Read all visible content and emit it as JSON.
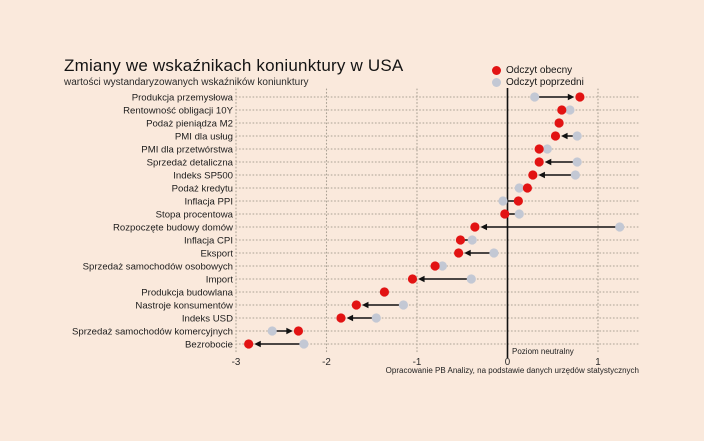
{
  "source": "Opracowanie PB Analizy, na podstawie danych urzędów statystycznych",
  "colors": {
    "background": "#fae9dc",
    "current": "#e21313",
    "previous": "#c3c8d4",
    "arrow": "#111111",
    "grid": "#aba295",
    "text": "#1c1c1c",
    "tick_text": "#2a2a2a"
  },
  "chart_data": {
    "type": "dumbbell-dot",
    "title": "Zmiany we wskaźnikach koniunktury w USA",
    "subtitle": "wartości wystandaryzowanych wskaźników koniunktury",
    "neutral_label": "Poziom neutralny",
    "xlabel": "",
    "ylabel": "",
    "x_ticks": [
      -3,
      -2,
      -1,
      0,
      1
    ],
    "xlim": [
      -3.1,
      1.45
    ],
    "neutral_line": 0,
    "grid": "dotted",
    "legend_position": "top-right",
    "series": [
      {
        "name": "Odczyt obecny",
        "color": "#e21313"
      },
      {
        "name": "Odczyt poprzedni",
        "color": "#c3c8d4"
      }
    ],
    "categories": [
      "Produkcja przemysłowa",
      "Rentowność obligacji 10Y",
      "Podaż pieniądza M2",
      "PMI dla usług",
      "PMI dla przetwórstwa",
      "Sprzedaż detaliczna",
      "Indeks SP500",
      "Podaż kredytu",
      "Inflacja PPI",
      "Stopa procentowa",
      "Rozpoczęte budowy domów",
      "Inflacja CPI",
      "Eksport",
      "Sprzedaż samochodów osobowych",
      "Import",
      "Produkcja budowlana",
      "Nastroje konsumentów",
      "Indeks USD",
      "Sprzedaż samochodów komercyjnych",
      "Bezrobocie"
    ],
    "current": [
      0.8,
      0.6,
      0.57,
      0.53,
      0.35,
      0.35,
      0.28,
      0.22,
      0.12,
      -0.03,
      -0.36,
      -0.52,
      -0.54,
      -0.8,
      -1.05,
      -1.36,
      -1.67,
      -1.84,
      -2.31,
      -2.86
    ],
    "previous": [
      0.3,
      0.69,
      0.57,
      0.77,
      0.44,
      0.77,
      0.75,
      0.13,
      -0.05,
      0.13,
      1.24,
      -0.39,
      -0.15,
      -0.72,
      -0.4,
      -1.36,
      -1.15,
      -1.45,
      -2.6,
      -2.25
    ]
  }
}
